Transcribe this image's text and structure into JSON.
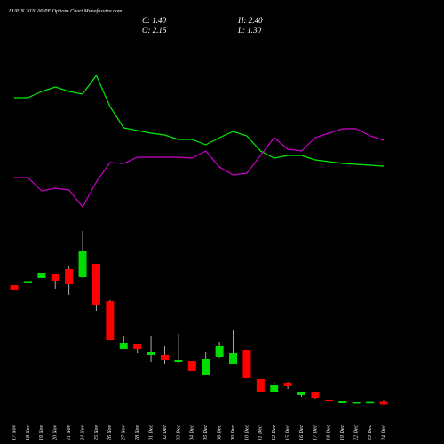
{
  "chart_data": {
    "type": "candlestick",
    "title": "LUPIN 2020.00 PE Options Chart Munafasutra.com",
    "info": [
      "C: 1.40",
      "H: 2.40",
      "O: 2.15",
      "L: 1.30"
    ],
    "categories": [
      "17 Nov",
      "18 Nov",
      "19 Nov",
      "20 Nov",
      "21 Nov",
      "24 Nov",
      "25 Nov",
      "26 Nov",
      "27 Nov",
      "28 Nov",
      "01 Dec",
      "02 Dec",
      "03 Dec",
      "04 Dec",
      "05 Dec",
      "08 Dec",
      "09 Dec",
      "10 Dec",
      "11 Dec",
      "12 Dec",
      "15 Dec",
      "16 Dec",
      "17 Dec",
      "18 Dec",
      "19 Dec",
      "22 Dec",
      "23 Dec",
      "24 Dec"
    ],
    "open": [
      35,
      35.5,
      37,
      38,
      39.5,
      37.25,
      41,
      30.5,
      17,
      18.5,
      15.25,
      15.25,
      13.25,
      13.75,
      9.75,
      14.75,
      12.75,
      16.75,
      8.5,
      5,
      7.5,
      4,
      5,
      2.75,
      1.75,
      1.75,
      1.7,
      2.15
    ],
    "high": [
      35,
      35.9,
      38.5,
      38,
      40.5,
      50.25,
      41,
      30.75,
      20.75,
      18.5,
      20.75,
      17.75,
      21.25,
      13.75,
      16.25,
      19,
      22.25,
      16.75,
      8.5,
      7.75,
      7.75,
      4.75,
      5,
      3,
      2.25,
      2,
      2.1,
      2.4
    ],
    "low": [
      33.5,
      35.5,
      37,
      33.75,
      32.25,
      37,
      27.75,
      19.5,
      17,
      15.75,
      13.25,
      12.75,
      13,
      10.75,
      9.75,
      14.5,
      12.75,
      8.75,
      4.75,
      5,
      5.75,
      3.5,
      3,
      2,
      1.75,
      1.75,
      1.7,
      1.3
    ],
    "close": [
      33.5,
      35.9,
      38.5,
      36.25,
      35.25,
      44.5,
      29.25,
      19.5,
      18.75,
      17,
      16.25,
      14,
      14,
      10.75,
      14.25,
      17.75,
      15.75,
      8.75,
      4.75,
      6.75,
      6.5,
      4.75,
      3.25,
      2.25,
      2.25,
      2,
      2.1,
      1.4
    ],
    "up_color": "#00dd00",
    "down_color": "#ff0000",
    "series": [
      {
        "color": "#00ee00",
        "values": [
          70,
          70,
          73.5,
          76,
          73.5,
          72,
          82.5,
          65,
          53,
          51.5,
          50,
          49,
          46.5,
          46.5,
          43.5,
          47.5,
          51,
          48.5,
          40,
          36,
          37.5,
          37.5,
          35,
          34,
          33,
          32.5,
          32,
          31.5
        ]
      },
      {
        "color": "#cc00cc",
        "values": [
          25,
          25,
          17.5,
          19,
          18,
          8.5,
          22.5,
          33.5,
          33,
          36.5,
          36.5,
          36.5,
          36.5,
          36,
          40,
          31,
          26.5,
          27.5,
          37.5,
          47.5,
          41,
          40,
          47.5,
          50,
          52.5,
          52.5,
          48.5,
          46
        ]
      }
    ]
  }
}
